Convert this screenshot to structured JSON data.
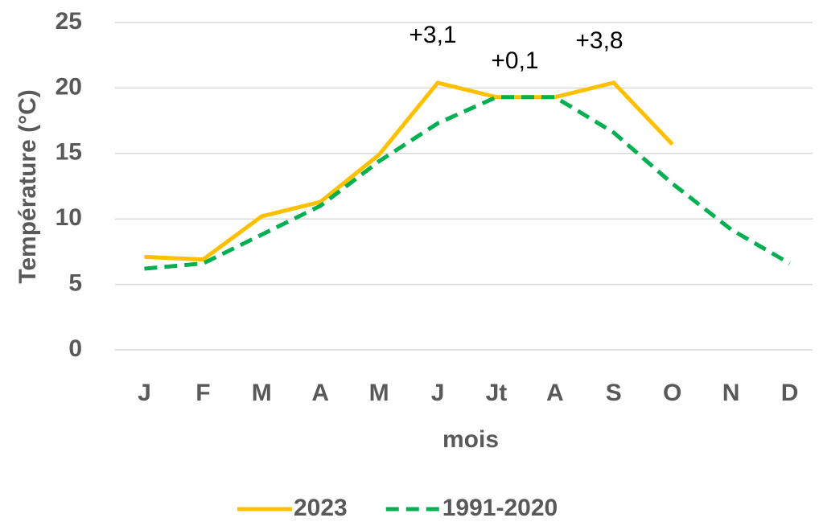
{
  "chart_data": {
    "type": "line",
    "x_label": "mois",
    "y_label": "Température (°C)",
    "categories": [
      "J",
      "F",
      "M",
      "A",
      "M",
      "J",
      "Jt",
      "A",
      "S",
      "O",
      "N",
      "D"
    ],
    "series": [
      {
        "name": "2023",
        "color": "#ffc000",
        "dash": false,
        "values": [
          7.1,
          6.9,
          10.2,
          11.3,
          14.9,
          20.4,
          19.3,
          19.3,
          20.4,
          15.7,
          null,
          null
        ]
      },
      {
        "name": "1991-2020",
        "color": "#00b050",
        "dash": true,
        "values": [
          6.2,
          6.6,
          8.8,
          11.0,
          14.4,
          17.3,
          19.3,
          19.3,
          16.6,
          12.7,
          9.2,
          6.6
        ]
      }
    ],
    "annotations": [
      "+3,1",
      "+0,1",
      "+3,8"
    ],
    "ylim": [
      0,
      25
    ],
    "yticks": [
      0,
      5,
      10,
      15,
      20,
      25
    ],
    "grid": true,
    "legend": "bottom"
  }
}
